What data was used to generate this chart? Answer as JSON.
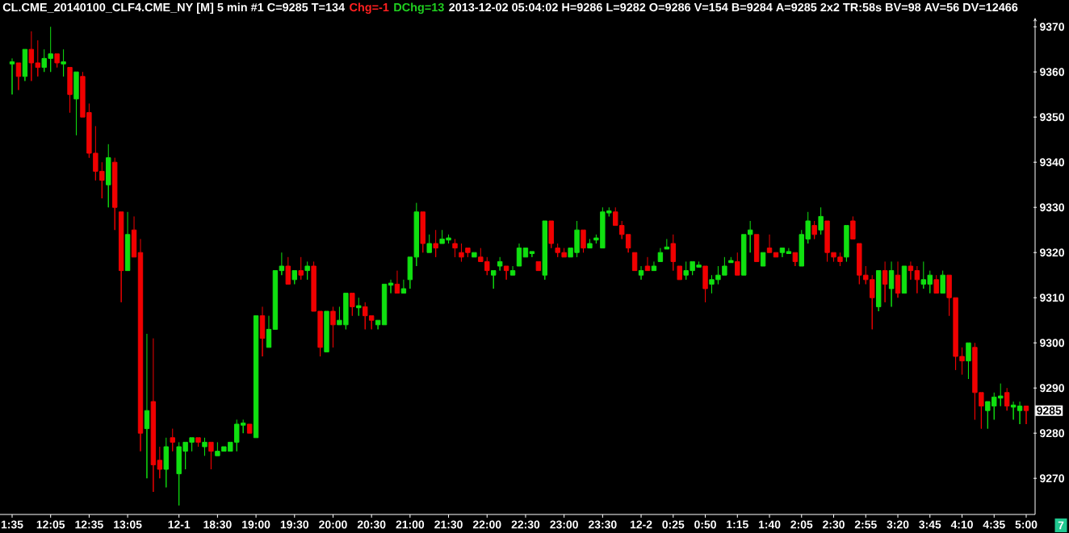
{
  "chart_data": {
    "type": "candlestick",
    "title": "CL.CME_20140100_CLF4.CME_NY [M] 5 min #1 C=9285 T=134",
    "annotations": [
      "Chg=-1",
      "DChg=13",
      "2013-12-02 05:04:02 H=9286 L=9282 O=9286 V=154 B=9284 A=9285 2x2 TR:58s BV=98 AV=56 DV=12466",
      "7",
      {
        "text": "9285",
        "y": 9285
      }
    ],
    "categories": [
      "1:35",
      null,
      null,
      null,
      null,
      null,
      "12:05",
      null,
      null,
      null,
      null,
      null,
      "12:35",
      null,
      null,
      null,
      null,
      null,
      "13:05",
      null,
      null,
      null,
      null,
      null,
      null,
      null,
      "12-1",
      null,
      null,
      null,
      null,
      null,
      "18:30",
      null,
      null,
      null,
      null,
      null,
      "19:00",
      null,
      null,
      null,
      null,
      null,
      "19:30",
      null,
      null,
      null,
      null,
      null,
      "20:00",
      null,
      null,
      null,
      null,
      null,
      "20:30",
      null,
      null,
      null,
      null,
      null,
      "21:00",
      null,
      null,
      null,
      null,
      null,
      "21:30",
      null,
      null,
      null,
      null,
      null,
      "22:00",
      null,
      null,
      null,
      null,
      null,
      "22:30",
      null,
      null,
      null,
      null,
      null,
      "23:00",
      null,
      null,
      null,
      null,
      null,
      "23:30",
      null,
      null,
      null,
      null,
      null,
      "12-2",
      null,
      null,
      null,
      null,
      "0:25",
      null,
      null,
      null,
      null,
      "0:50",
      null,
      null,
      null,
      null,
      "1:15",
      null,
      null,
      null,
      null,
      "1:40",
      null,
      null,
      null,
      null,
      "2:05",
      null,
      null,
      null,
      null,
      "2:30",
      null,
      null,
      null,
      null,
      "2:55",
      null,
      null,
      null,
      null,
      "3:20",
      null,
      null,
      null,
      null,
      "3:45",
      null,
      null,
      null,
      null,
      "4:10",
      null,
      null,
      null,
      null,
      "4:35",
      null,
      null,
      null,
      null,
      "5:00"
    ],
    "ohlc": [
      [
        9362,
        9363,
        9355,
        9362
      ],
      [
        9362,
        9362,
        9356,
        9359
      ],
      [
        9359,
        9365,
        9358,
        9365
      ],
      [
        9365,
        9369,
        9358,
        9362
      ],
      [
        9362,
        9367,
        9359,
        9361
      ],
      [
        9361,
        9365,
        9360,
        9363
      ],
      [
        9363,
        9370,
        9360,
        9364
      ],
      [
        9364,
        9364,
        9361,
        9362
      ],
      [
        9362,
        9365,
        9359,
        9362
      ],
      [
        9361,
        9361,
        9351,
        9355
      ],
      [
        9354,
        9360,
        9346,
        9360
      ],
      [
        9359,
        9360,
        9350,
        9350
      ],
      [
        9351,
        9353,
        9341,
        9342
      ],
      [
        9342,
        9348,
        9336,
        9338
      ],
      [
        9338,
        9340,
        9332,
        9336
      ],
      [
        9335,
        9344,
        9330,
        9341
      ],
      [
        9340,
        9341,
        9325,
        9330
      ],
      [
        9329,
        9329,
        9309,
        9316
      ],
      [
        9316,
        9329,
        9316,
        9324
      ],
      [
        9325,
        9328,
        9319,
        9319
      ],
      [
        9320,
        9323,
        9276,
        9280
      ],
      [
        9281,
        9302,
        9270,
        9285
      ],
      [
        9287,
        9301,
        9267,
        9273
      ],
      [
        9274,
        9277,
        9270,
        9272
      ],
      [
        9272,
        9279,
        9268,
        9277
      ],
      [
        9279,
        9281,
        9276,
        9278
      ],
      [
        9271,
        9278,
        9264,
        9277
      ],
      [
        9276,
        9278,
        9272,
        9278
      ],
      [
        9278,
        9279,
        9276,
        9279
      ],
      [
        9279,
        9279,
        9277,
        9278
      ],
      [
        9277,
        9279,
        9275,
        9278
      ],
      [
        9278,
        9278,
        9272,
        9276
      ],
      [
        9275,
        9278,
        9275,
        9276
      ],
      [
        9276,
        9277,
        9276,
        9277
      ],
      [
        9276,
        9278,
        9276,
        9278
      ],
      [
        9278,
        9283,
        9276,
        9282
      ],
      [
        9282,
        9283,
        9280,
        9282
      ],
      [
        9282,
        9282,
        9280,
        9280
      ],
      [
        9279,
        9306,
        9279,
        9306
      ],
      [
        9306,
        9308,
        9297,
        9301
      ],
      [
        9299,
        9306,
        9299,
        9303
      ],
      [
        9303,
        9316,
        9303,
        9316
      ],
      [
        9316,
        9320,
        9315,
        9317
      ],
      [
        9317,
        9319,
        9313,
        9313
      ],
      [
        9314,
        9316,
        9313,
        9316
      ],
      [
        9316,
        9319,
        9314,
        9315
      ],
      [
        9316,
        9318,
        9314,
        9317
      ],
      [
        9317,
        9318,
        9307,
        9307
      ],
      [
        9307,
        9307,
        9297,
        9299
      ],
      [
        9298,
        9307,
        9298,
        9307
      ],
      [
        9307,
        9308,
        9299,
        9304
      ],
      [
        9304,
        9308,
        9304,
        9305
      ],
      [
        9304,
        9311,
        9303,
        9311
      ],
      [
        9311,
        9311,
        9306,
        9308
      ],
      [
        9308,
        9310,
        9306,
        9308
      ],
      [
        9308,
        9309,
        9303,
        9306
      ],
      [
        9306,
        9306,
        9303,
        9305
      ],
      [
        9304,
        9305,
        9303,
        9305
      ],
      [
        9304,
        9313,
        9304,
        9313
      ],
      [
        9313,
        9314,
        9311,
        9313
      ],
      [
        9313,
        9316,
        9311,
        9311
      ],
      [
        9311,
        9314,
        9311,
        9312
      ],
      [
        9314,
        9319,
        9312,
        9319
      ],
      [
        9319,
        9331,
        9317,
        9329
      ],
      [
        9329,
        9329,
        9320,
        9322
      ],
      [
        9320,
        9324,
        9320,
        9322
      ],
      [
        9322,
        9325,
        9319,
        9321
      ],
      [
        9322,
        9325,
        9322,
        9323
      ],
      [
        9323,
        9324,
        9322,
        9323
      ],
      [
        9322,
        9323,
        9319,
        9321
      ],
      [
        9320,
        9322,
        9318,
        9319
      ],
      [
        9321,
        9321,
        9319,
        9320
      ],
      [
        9319,
        9320,
        9319,
        9320
      ],
      [
        9319,
        9321,
        9318,
        9318
      ],
      [
        9318,
        9319,
        9315,
        9316
      ],
      [
        9315,
        9316,
        9312,
        9316
      ],
      [
        9317,
        9319,
        9316,
        9318
      ],
      [
        9317,
        9317,
        9314,
        9316
      ],
      [
        9315,
        9317,
        9315,
        9316
      ],
      [
        9317,
        9322,
        9317,
        9321
      ],
      [
        9319,
        9321,
        9319,
        9321
      ],
      [
        9320,
        9320,
        9319,
        9320
      ],
      [
        9318,
        9318,
        9316,
        9316
      ],
      [
        9315,
        9327,
        9314,
        9327
      ],
      [
        9327,
        9327,
        9321,
        9322
      ],
      [
        9321,
        9322,
        9319,
        9320
      ],
      [
        9320,
        9321,
        9319,
        9319
      ],
      [
        9319,
        9321,
        9319,
        9321
      ],
      [
        9320,
        9327,
        9319,
        9325
      ],
      [
        9325,
        9325,
        9320,
        9321
      ],
      [
        9321,
        9323,
        9321,
        9322
      ],
      [
        9323,
        9324,
        9322,
        9323
      ],
      [
        9321,
        9330,
        9321,
        9329
      ],
      [
        9329,
        9330,
        9328,
        9329
      ],
      [
        9329,
        9330,
        9326,
        9326
      ],
      [
        9326,
        9327,
        9323,
        9324
      ],
      [
        9324,
        9324,
        9320,
        9321
      ],
      [
        9320,
        9320,
        9316,
        9316
      ],
      [
        9315,
        9317,
        9314,
        9316
      ],
      [
        9317,
        9319,
        9316,
        9316
      ],
      [
        9316,
        9318,
        9316,
        9317
      ],
      [
        9318,
        9321,
        9318,
        9320
      ],
      [
        9321,
        9323,
        9321,
        9321
      ],
      [
        9322,
        9324,
        9316,
        9318
      ],
      [
        9317,
        9317,
        9314,
        9314
      ],
      [
        9315,
        9318,
        9314,
        9316
      ],
      [
        9316,
        9318,
        9315,
        9318
      ],
      [
        9317,
        9318,
        9317,
        9317
      ],
      [
        9317,
        9317,
        9309,
        9312
      ],
      [
        9313,
        9315,
        9311,
        9314
      ],
      [
        9314,
        9317,
        9313,
        9315
      ],
      [
        9315,
        9319,
        9315,
        9317
      ],
      [
        9318,
        9319,
        9318,
        9318
      ],
      [
        9318,
        9320,
        9315,
        9315
      ],
      [
        9315,
        9324,
        9315,
        9324
      ],
      [
        9324,
        9327,
        9320,
        9325
      ],
      [
        9324,
        9324,
        9318,
        9318
      ],
      [
        9317,
        9320,
        9317,
        9320
      ],
      [
        9321,
        9324,
        9320,
        9320
      ],
      [
        9320,
        9320,
        9319,
        9319
      ],
      [
        9320,
        9321,
        9319,
        9321
      ],
      [
        9320,
        9321,
        9320,
        9320
      ],
      [
        9320,
        9320,
        9317,
        9318
      ],
      [
        9317,
        9325,
        9317,
        9324
      ],
      [
        9323,
        9329,
        9322,
        9327
      ],
      [
        9326,
        9327,
        9323,
        9324
      ],
      [
        9325,
        9330,
        9324,
        9328
      ],
      [
        9327,
        9327,
        9318,
        9320
      ],
      [
        9320,
        9320,
        9318,
        9319
      ],
      [
        9319,
        9320,
        9317,
        9318
      ],
      [
        9319,
        9326,
        9318,
        9326
      ],
      [
        9327,
        9328,
        9323,
        9323
      ],
      [
        9322,
        9322,
        9313,
        9315
      ],
      [
        9315,
        9317,
        9313,
        9314
      ],
      [
        9314,
        9315,
        9303,
        9310
      ],
      [
        9308,
        9316,
        9307,
        9316
      ],
      [
        9316,
        9318,
        9309,
        9313
      ],
      [
        9312,
        9318,
        9308,
        9316
      ],
      [
        9315,
        9318,
        9310,
        9311
      ],
      [
        9311,
        9317,
        9311,
        9317
      ],
      [
        9317,
        9318,
        9314,
        9316
      ],
      [
        9316,
        9317,
        9311,
        9314
      ],
      [
        9313,
        9318,
        9312,
        9314
      ],
      [
        9313,
        9316,
        9311,
        9315
      ],
      [
        9314,
        9315,
        9311,
        9311
      ],
      [
        9311,
        9316,
        9311,
        9315
      ],
      [
        9315,
        9315,
        9306,
        9310
      ],
      [
        9310,
        9310,
        9294,
        9297
      ],
      [
        9297,
        9299,
        9293,
        9296
      ],
      [
        9296,
        9300,
        9292,
        9300
      ],
      [
        9299,
        9300,
        9283,
        9289
      ],
      [
        9289,
        9289,
        9281,
        9286
      ],
      [
        9285,
        9287,
        9281,
        9287
      ],
      [
        9286,
        9289,
        9283,
        9288
      ],
      [
        9288,
        9291,
        9286,
        9288
      ],
      [
        9289,
        9290,
        9285,
        9286
      ],
      [
        9286,
        9287,
        9283,
        9286
      ],
      [
        9285,
        9287,
        9282,
        9286
      ],
      [
        9286,
        9286,
        9282,
        9285
      ]
    ],
    "colors": [
      "#10e010",
      "#f00000",
      "#10e010",
      "#f00000",
      "#f00000",
      "#10e010",
      "#10e010",
      "#f00000",
      "#10e010",
      "#f00000",
      "#10e010",
      "#f00000",
      "#f00000",
      "#f00000",
      "#f00000",
      "#10e010",
      "#f00000",
      "#f00000",
      "#10e010",
      "#f00000",
      "#f00000",
      "#10e010",
      "#f00000",
      "#f00000",
      "#10e010",
      "#f00000",
      "#10e010",
      "#10e010",
      "#10e010",
      "#f00000",
      "#10e010",
      "#f00000",
      "#10e010",
      "#10e010",
      "#10e010",
      "#10e010",
      "#10e010",
      "#f00000",
      "#10e010",
      "#f00000",
      "#10e010",
      "#10e010",
      "#10e010",
      "#f00000",
      "#10e010",
      "#f00000",
      "#10e010",
      "#f00000",
      "#f00000",
      "#10e010",
      "#f00000",
      "#10e010",
      "#10e010",
      "#f00000",
      "#10e010",
      "#f00000",
      "#f00000",
      "#10e010",
      "#10e010",
      "#10e010",
      "#f00000",
      "#10e010",
      "#10e010",
      "#10e010",
      "#f00000",
      "#10e010",
      "#f00000",
      "#10e010",
      "#10e010",
      "#f00000",
      "#f00000",
      "#f00000",
      "#10e010",
      "#f00000",
      "#f00000",
      "#10e010",
      "#10e010",
      "#f00000",
      "#10e010",
      "#10e010",
      "#10e010",
      "#10e010",
      "#f00000",
      "#10e010",
      "#f00000",
      "#f00000",
      "#f00000",
      "#10e010",
      "#10e010",
      "#f00000",
      "#10e010",
      "#10e010",
      "#10e010",
      "#10e010",
      "#f00000",
      "#f00000",
      "#f00000",
      "#f00000",
      "#10e010",
      "#f00000",
      "#10e010",
      "#10e010",
      "#10e010",
      "#f00000",
      "#f00000",
      "#10e010",
      "#10e010",
      "#10e010",
      "#f00000",
      "#10e010",
      "#10e010",
      "#10e010",
      "#10e010",
      "#f00000",
      "#10e010",
      "#10e010",
      "#f00000",
      "#10e010",
      "#f00000",
      "#f00000",
      "#10e010",
      "#10e010",
      "#f00000",
      "#10e010",
      "#10e010",
      "#f00000",
      "#10e010",
      "#f00000",
      "#f00000",
      "#f00000",
      "#10e010",
      "#f00000",
      "#f00000",
      "#f00000",
      "#f00000",
      "#10e010",
      "#f00000",
      "#10e010",
      "#f00000",
      "#10e010",
      "#f00000",
      "#f00000",
      "#10e010",
      "#10e010",
      "#f00000",
      "#10e010",
      "#f00000",
      "#f00000",
      "#f00000",
      "#10e010",
      "#f00000",
      "#f00000",
      "#10e010",
      "#10e010",
      "#10e010",
      "#f00000",
      "#10e010",
      "#10e010",
      "#f00000"
    ],
    "ylim": [
      9262,
      9372
    ],
    "yticks": [
      9270,
      9280,
      9290,
      9300,
      9310,
      9320,
      9330,
      9340,
      9350,
      9360,
      9370
    ]
  }
}
